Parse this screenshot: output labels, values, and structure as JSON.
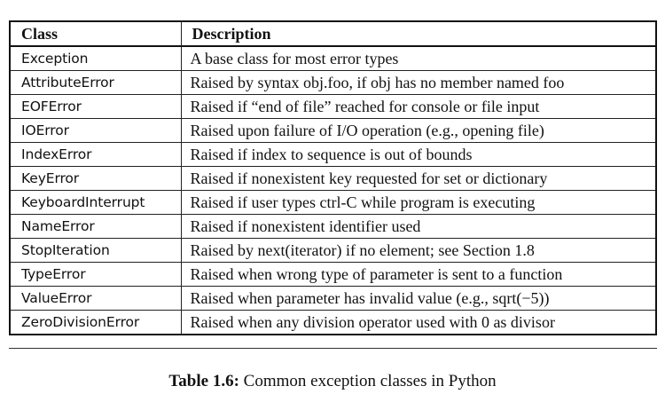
{
  "table": {
    "headers": [
      "Class",
      "Description"
    ],
    "rows": [
      {
        "class": "Exception",
        "description": "A base class for most error types"
      },
      {
        "class": "AttributeError",
        "description": "Raised by syntax obj.foo, if obj has no member named foo"
      },
      {
        "class": "EOFError",
        "description": "Raised if “end of file” reached for console or file input"
      },
      {
        "class": "IOError",
        "description": "Raised upon failure of I/O operation (e.g., opening file)"
      },
      {
        "class": "IndexError",
        "description": "Raised if index to sequence is out of bounds"
      },
      {
        "class": "KeyError",
        "description": "Raised if nonexistent key requested for set or dictionary"
      },
      {
        "class": "KeyboardInterrupt",
        "description": "Raised if user types ctrl-C while program is executing"
      },
      {
        "class": "NameError",
        "description": "Raised if nonexistent identifier used"
      },
      {
        "class": "StopIteration",
        "description": "Raised by next(iterator) if no element; see Section 1.8"
      },
      {
        "class": "TypeError",
        "description": "Raised when wrong type of parameter is sent to a function"
      },
      {
        "class": "ValueError",
        "description": "Raised when parameter has invalid value (e.g., sqrt(−5))"
      },
      {
        "class": "ZeroDivisionError",
        "description": "Raised when any division operator used with 0 as divisor"
      }
    ]
  },
  "caption": {
    "label": "Table 1.6:",
    "text": " Common exception classes in Python"
  }
}
